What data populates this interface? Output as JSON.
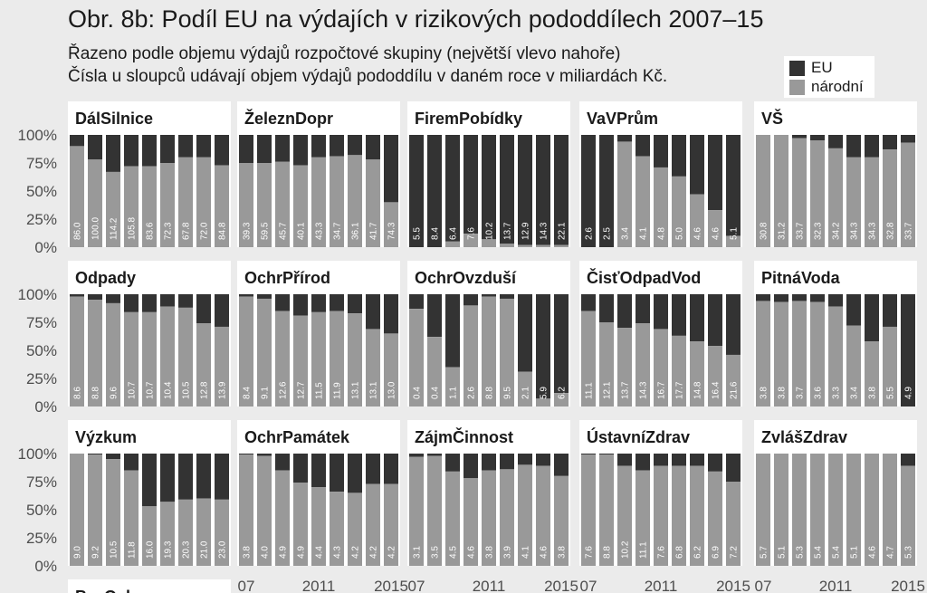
{
  "header": {
    "title": "Obr. 8b: Podíl EU na výdajích v rizikových pododdílech 2007–15",
    "subtitle_line1": "Řazeno podle objemu výdajů rozpočtové skupiny (největší vlevo nahoře)",
    "subtitle_line2": "Čísla u sloupců udávají objem výdajů pododdílu v daném roce v miliardách Kč."
  },
  "legend": {
    "items": [
      {
        "label": "EU",
        "color": "#333333"
      },
      {
        "label": "národní",
        "color": "#999999"
      }
    ]
  },
  "colors": {
    "background": "#ebebeb",
    "panel": "#ffffff",
    "eu": "#333333",
    "national": "#999999",
    "text": "#1a1a1a",
    "value_label": "#ffffff",
    "axis_text": "#4d4d4d"
  },
  "chart_data": {
    "type": "bar",
    "stacked": true,
    "value_units": "share",
    "title": "Obr. 8b: Podíl EU na výdajích v rizikových pododdílech 2007–15",
    "years": [
      2007,
      2008,
      2009,
      2010,
      2011,
      2012,
      2013,
      2014,
      2015
    ],
    "x_tick_labels": [
      "07",
      "2011",
      "2015"
    ],
    "y_tick_labels": [
      "0%",
      "25%",
      "50%",
      "75%",
      "100%"
    ],
    "ylim": [
      0,
      1
    ],
    "series": [
      {
        "name": "EU",
        "color": "#333333"
      },
      {
        "name": "národní",
        "color": "#999999"
      }
    ],
    "legend_position": "top-right",
    "panels": [
      {
        "name": "DálSilnice",
        "national_share": [
          0.9,
          0.78,
          0.67,
          0.72,
          0.72,
          0.75,
          0.8,
          0.8,
          0.73
        ],
        "volume": [
          "86.0",
          "100.0",
          "114.2",
          "105.8",
          "83.6",
          "72.3",
          "67.8",
          "72.0",
          "84.8"
        ]
      },
      {
        "name": "ŽeleznDopr",
        "national_share": [
          0.75,
          0.75,
          0.76,
          0.73,
          0.8,
          0.81,
          0.82,
          0.78,
          0.4
        ],
        "volume": [
          "39.3",
          "59.5",
          "45.7",
          "40.1",
          "43.3",
          "34.7",
          "36.1",
          "41.7",
          "74.3"
        ]
      },
      {
        "name": "FiremPobídky",
        "national_share": [
          0.0,
          0.0,
          0.05,
          0.12,
          0.07,
          0.03,
          0.02,
          0.02,
          0.02
        ],
        "volume": [
          "5.5",
          "8.4",
          "6.4",
          "7.6",
          "10.2",
          "13.7",
          "12.9",
          "14.3",
          "22.1"
        ]
      },
      {
        "name": "VaVPrům",
        "national_share": [
          0.0,
          0.0,
          0.94,
          0.81,
          0.71,
          0.63,
          0.47,
          0.33,
          0.1
        ],
        "volume": [
          "2.6",
          "2.5",
          "3.4",
          "4.1",
          "4.8",
          "5.0",
          "4.6",
          "4.6",
          "5.1"
        ]
      },
      {
        "name": "VŠ",
        "national_share": [
          1.0,
          1.0,
          0.97,
          0.95,
          0.88,
          0.8,
          0.8,
          0.87,
          0.93
        ],
        "volume": [
          "30.8",
          "31.2",
          "33.7",
          "32.3",
          "34.2",
          "34.3",
          "34.3",
          "32.8",
          "33.7"
        ]
      },
      {
        "name": "Odpady",
        "national_share": [
          0.98,
          0.95,
          0.92,
          0.84,
          0.84,
          0.89,
          0.88,
          0.74,
          0.71
        ],
        "volume": [
          "8.6",
          "8.8",
          "9.6",
          "10.7",
          "10.7",
          "10.4",
          "10.5",
          "12.8",
          "13.9"
        ]
      },
      {
        "name": "OchrPřírod",
        "national_share": [
          0.98,
          0.96,
          0.85,
          0.81,
          0.84,
          0.85,
          0.83,
          0.69,
          0.65
        ],
        "volume": [
          "8.4",
          "9.1",
          "12.6",
          "12.7",
          "11.5",
          "11.9",
          "13.1",
          "13.1",
          "13.0"
        ]
      },
      {
        "name": "OchrOvzduší",
        "national_share": [
          0.87,
          0.62,
          0.35,
          0.9,
          0.98,
          0.96,
          0.31,
          0.07,
          0.12
        ],
        "volume": [
          "0.4",
          "0.4",
          "1.1",
          "2.6",
          "8.8",
          "9.5",
          "2.1",
          "5.9",
          "6.2"
        ]
      },
      {
        "name": "ČisťOdpadVod",
        "national_share": [
          0.85,
          0.75,
          0.7,
          0.74,
          0.69,
          0.63,
          0.58,
          0.54,
          0.46
        ],
        "volume": [
          "11.1",
          "12.1",
          "13.7",
          "14.3",
          "16.7",
          "17.7",
          "14.8",
          "16.4",
          "21.6"
        ]
      },
      {
        "name": "PitnáVoda",
        "national_share": [
          0.94,
          0.93,
          0.94,
          0.93,
          0.89,
          0.72,
          0.58,
          0.71,
          0.0
        ],
        "volume": [
          "3.8",
          "3.8",
          "3.7",
          "3.6",
          "3.3",
          "3.4",
          "3.8",
          "5.5",
          "4.9"
        ]
      },
      {
        "name": "Výzkum",
        "national_share": [
          1.0,
          0.99,
          0.95,
          0.85,
          0.53,
          0.57,
          0.59,
          0.6,
          0.59
        ],
        "volume": [
          "9.0",
          "9.2",
          "10.5",
          "11.8",
          "16.0",
          "19.3",
          "20.3",
          "21.0",
          "23.0"
        ]
      },
      {
        "name": "OchrPamátek",
        "national_share": [
          0.99,
          0.98,
          0.85,
          0.74,
          0.7,
          0.66,
          0.65,
          0.73,
          0.73
        ],
        "volume": [
          "3.8",
          "4.0",
          "4.9",
          "4.9",
          "4.4",
          "4.3",
          "4.2",
          "4.2",
          "4.2"
        ]
      },
      {
        "name": "ZájmČinnost",
        "national_share": [
          0.97,
          0.98,
          0.84,
          0.78,
          0.85,
          0.86,
          0.9,
          0.89,
          0.8
        ],
        "volume": [
          "3.1",
          "3.5",
          "4.5",
          "4.6",
          "3.8",
          "3.9",
          "4.1",
          "4.6",
          "3.8"
        ]
      },
      {
        "name": "ÚstavníZdrav",
        "national_share": [
          0.99,
          0.99,
          0.89,
          0.85,
          0.89,
          0.89,
          0.89,
          0.84,
          0.75
        ],
        "volume": [
          "7.6",
          "8.8",
          "10.2",
          "11.1",
          "7.6",
          "6.8",
          "6.2",
          "6.9",
          "7.2"
        ]
      },
      {
        "name": "ZvlášZdrav",
        "national_share": [
          1.0,
          1.0,
          1.0,
          1.0,
          1.0,
          1.0,
          1.0,
          1.0,
          0.89
        ],
        "volume": [
          "5.7",
          "5.1",
          "5.3",
          "5.4",
          "5.4",
          "5.1",
          "4.6",
          "4.7",
          "5.3"
        ]
      },
      {
        "name": "BezOchr",
        "partial": true
      }
    ]
  }
}
